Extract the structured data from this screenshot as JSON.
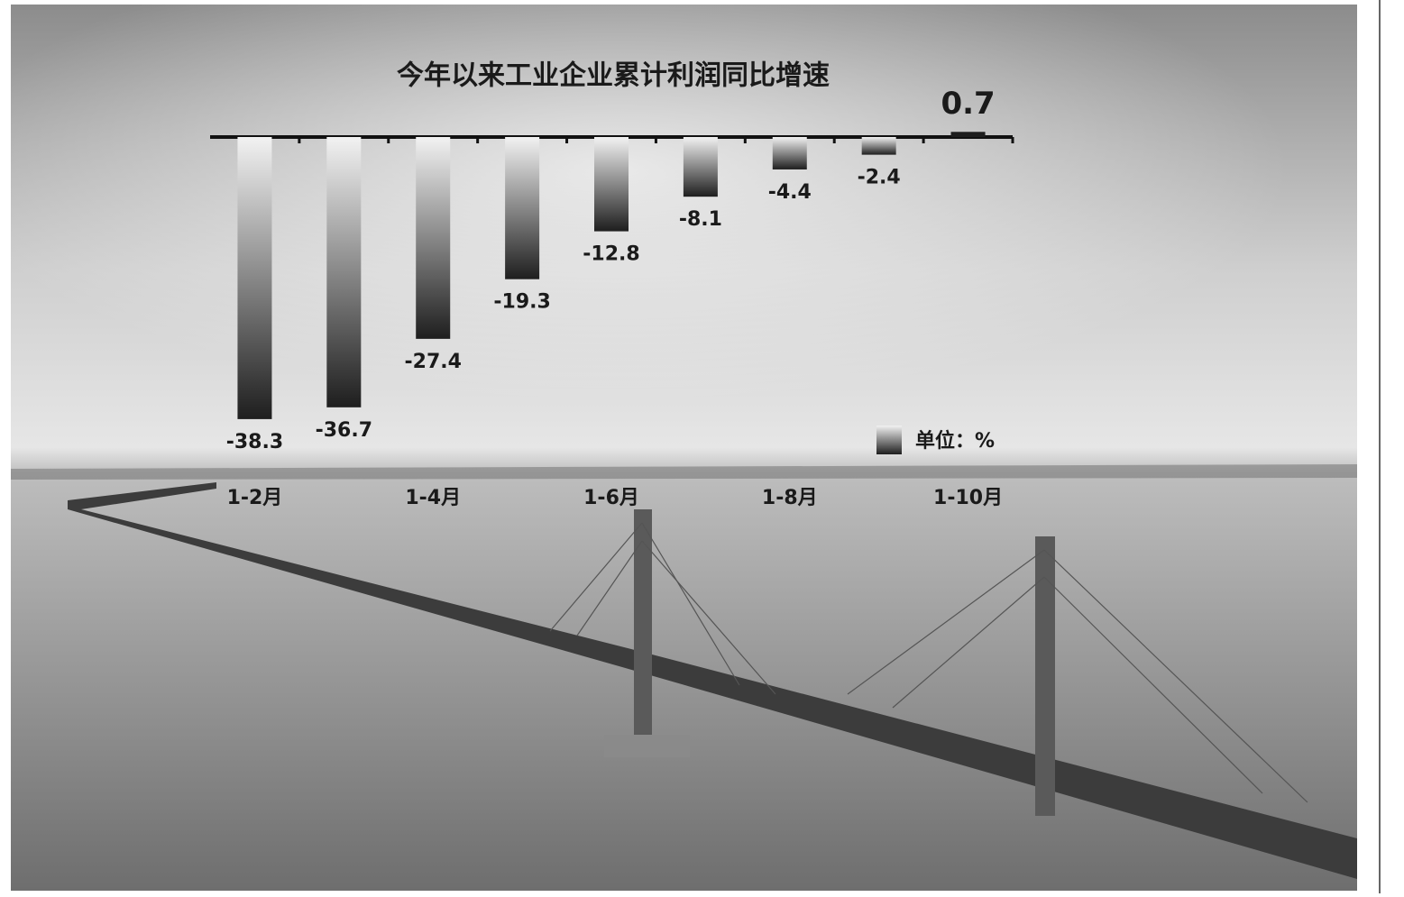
{
  "chart_data": {
    "type": "bar",
    "title": "今年以来工业企业累计利润同比增速",
    "unit_label": "单位：%",
    "categories": [
      "1-2月",
      null,
      "1-4月",
      null,
      "1-6月",
      null,
      "1-8月",
      null,
      "1-10月"
    ],
    "values": [
      -38.3,
      -36.7,
      -27.4,
      -19.3,
      -12.8,
      -8.1,
      -4.4,
      -2.4,
      0.7
    ],
    "color": "#1e1e1e",
    "ylim": [
      -40,
      2
    ]
  }
}
